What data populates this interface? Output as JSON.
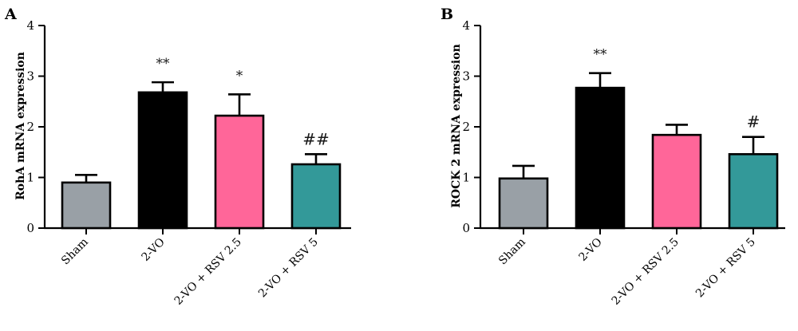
{
  "chart_data": [
    {
      "panel": "A",
      "type": "bar",
      "ylabel": "RohA mRNA expression",
      "ylim": [
        0,
        4
      ],
      "yticks": [
        0,
        1,
        2,
        3,
        4
      ],
      "categories": [
        "Sham",
        "2-VO",
        "2-VO + RSV 2.5",
        "2-VO + RSV 5"
      ],
      "values": [
        0.9,
        2.68,
        2.22,
        1.26
      ],
      "errors": [
        0.15,
        0.2,
        0.42,
        0.2
      ],
      "colors": [
        "#99a0a6",
        "#000000",
        "#ff6699",
        "#339999"
      ],
      "annotations": [
        "",
        "**",
        "*",
        "##"
      ]
    },
    {
      "panel": "B",
      "type": "bar",
      "ylabel": "ROCK 2 mRNA expression",
      "ylim": [
        0,
        4
      ],
      "yticks": [
        0,
        1,
        2,
        3,
        4
      ],
      "categories": [
        "Sham",
        "2-VO",
        "2-VO + RSV 2.5",
        "2-VO + RSV 5"
      ],
      "values": [
        0.98,
        2.77,
        1.84,
        1.46
      ],
      "errors": [
        0.25,
        0.29,
        0.2,
        0.34
      ],
      "colors": [
        "#99a0a6",
        "#000000",
        "#ff6699",
        "#339999"
      ],
      "annotations": [
        "",
        "**",
        "",
        "#"
      ]
    }
  ]
}
